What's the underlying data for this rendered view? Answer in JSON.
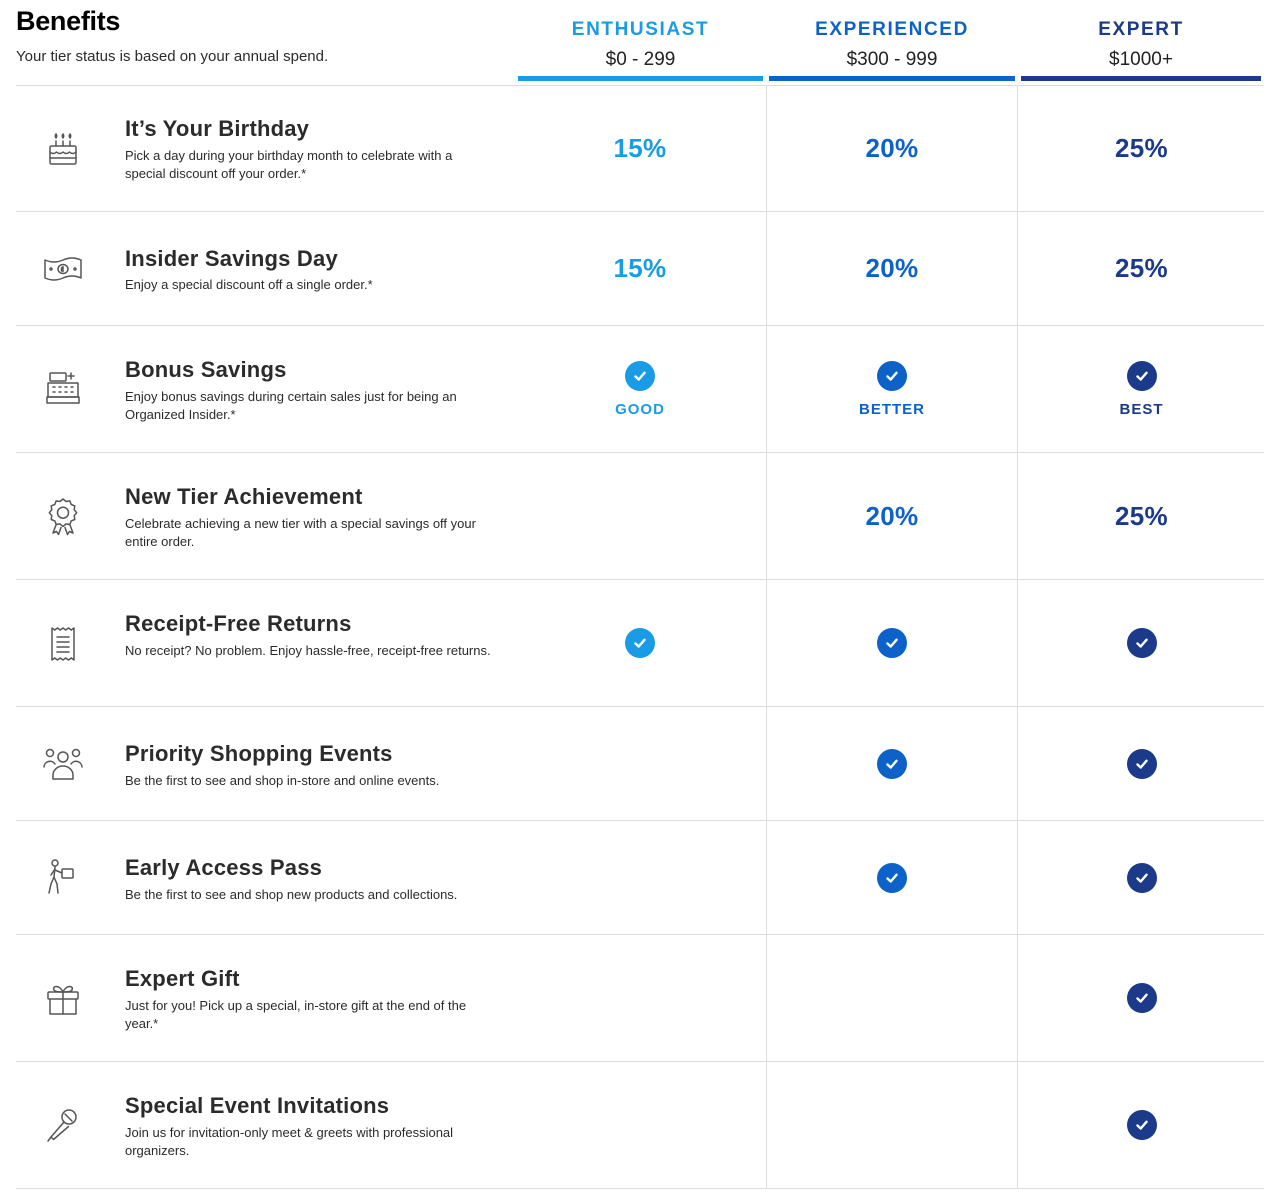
{
  "colors": {
    "enthusiast": "#1a9be6",
    "experienced": "#0d62c9",
    "expert": "#1c3a8a",
    "divider": "#dcdcdc",
    "icon": "#555555"
  },
  "header": {
    "title": "Benefits",
    "subtitle": "Your tier status is based on your annual spend."
  },
  "tiers": [
    {
      "name": "ENTHUSIAST",
      "range": "$0 - 299"
    },
    {
      "name": "EXPERIENCED",
      "range": "$300 - 999"
    },
    {
      "name": "EXPERT",
      "range": "$1000+"
    }
  ],
  "benefits": [
    {
      "icon": "birthday-cake-icon",
      "title": "It’s Your Birthday",
      "description": "Pick a day during your birthday month to celebrate with a special discount off your order.*",
      "tiers": [
        {
          "type": "percent",
          "text": "15%"
        },
        {
          "type": "percent",
          "text": "20%"
        },
        {
          "type": "percent",
          "text": "25%"
        }
      ]
    },
    {
      "icon": "money-bill-icon",
      "title": "Insider Savings Day",
      "description": "Enjoy a special discount off a single order.*",
      "tiers": [
        {
          "type": "percent",
          "text": "15%"
        },
        {
          "type": "percent",
          "text": "20%"
        },
        {
          "type": "percent",
          "text": "25%"
        }
      ]
    },
    {
      "icon": "cash-register-icon",
      "title": "Bonus Savings",
      "description": "Enjoy bonus savings during certain sales just for being an Organized Insider.*",
      "tiers": [
        {
          "type": "check",
          "label": "GOOD"
        },
        {
          "type": "check",
          "label": "BETTER"
        },
        {
          "type": "check",
          "label": "BEST"
        }
      ]
    },
    {
      "icon": "award-ribbon-icon",
      "title": "New Tier Achievement",
      "description": "Celebrate achieving a new tier with a special savings off your entire order.",
      "tiers": [
        {
          "type": "none"
        },
        {
          "type": "percent",
          "text": "20%"
        },
        {
          "type": "percent",
          "text": "25%"
        }
      ]
    },
    {
      "icon": "receipt-icon",
      "title": "Receipt-Free Returns",
      "description": "No receipt? No problem. Enjoy hassle-free, receipt-free returns.",
      "tiers": [
        {
          "type": "check"
        },
        {
          "type": "check"
        },
        {
          "type": "check"
        }
      ]
    },
    {
      "icon": "people-group-icon",
      "title": "Priority Shopping Events",
      "description": "Be the first to see and shop in-store and online events.",
      "tiers": [
        {
          "type": "none"
        },
        {
          "type": "check"
        },
        {
          "type": "check"
        }
      ]
    },
    {
      "icon": "person-with-box-icon",
      "title": "Early Access Pass",
      "description": "Be the first to see and shop new products and collections.",
      "tiers": [
        {
          "type": "none"
        },
        {
          "type": "check"
        },
        {
          "type": "check"
        }
      ]
    },
    {
      "icon": "gift-icon",
      "title": "Expert Gift",
      "description": "Just for you! Pick up a special, in-store gift at the end of the year.*",
      "tiers": [
        {
          "type": "none"
        },
        {
          "type": "none"
        },
        {
          "type": "check"
        }
      ]
    },
    {
      "icon": "microphone-icon",
      "title": "Special Event Invitations",
      "description": "Join us for invitation-only meet & greets with professional organizers.",
      "tiers": [
        {
          "type": "none"
        },
        {
          "type": "none"
        },
        {
          "type": "check"
        }
      ]
    }
  ]
}
